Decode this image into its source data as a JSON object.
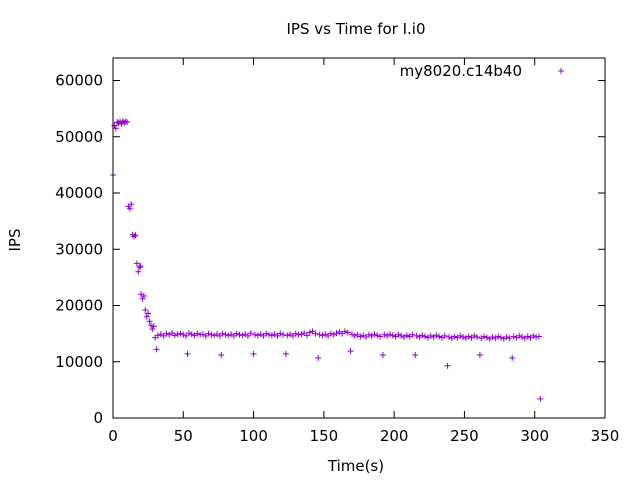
{
  "chart_data": {
    "type": "scatter",
    "title": "IPS vs Time for I.i0",
    "xlabel": "Time(s)",
    "ylabel": "IPS",
    "xlim": [
      0,
      350
    ],
    "ylim": [
      0,
      64000
    ],
    "xticks": [
      0,
      50,
      100,
      150,
      200,
      250,
      300,
      350
    ],
    "yticks": [
      0,
      10000,
      20000,
      30000,
      40000,
      50000,
      60000
    ],
    "grid": false,
    "legend_position": "top-right",
    "marker": "+",
    "series": [
      {
        "name": "my8020.c14b40",
        "color": "#9400d3",
        "points": [
          [
            0,
            43200
          ],
          [
            1,
            52000
          ],
          [
            2,
            51500
          ],
          [
            3,
            52600
          ],
          [
            4,
            52400
          ],
          [
            5,
            52700
          ],
          [
            6,
            52300
          ],
          [
            7,
            52800
          ],
          [
            8,
            52500
          ],
          [
            9,
            52700
          ],
          [
            10,
            52600
          ],
          [
            11,
            37600
          ],
          [
            12,
            37200
          ],
          [
            13,
            38000
          ],
          [
            14,
            32600
          ],
          [
            15,
            32300
          ],
          [
            16,
            32500
          ],
          [
            17,
            27500
          ],
          [
            18,
            26000
          ],
          [
            19,
            26800
          ],
          [
            19.5,
            27000
          ],
          [
            20,
            22000
          ],
          [
            21,
            21200
          ],
          [
            22,
            21700
          ],
          [
            23,
            19200
          ],
          [
            24,
            18000
          ],
          [
            25,
            18600
          ],
          [
            26,
            17200
          ],
          [
            27,
            16500
          ],
          [
            28,
            15800
          ],
          [
            29,
            16300
          ],
          [
            30,
            14300
          ],
          [
            31,
            12200
          ],
          [
            32,
            14700
          ],
          [
            34,
            14900
          ],
          [
            36,
            14600
          ],
          [
            38,
            15000
          ],
          [
            40,
            14800
          ],
          [
            42,
            15100
          ],
          [
            44,
            14700
          ],
          [
            46,
            14900
          ],
          [
            48,
            15000
          ],
          [
            50,
            14800
          ],
          [
            52,
            14600
          ],
          [
            53,
            11400
          ],
          [
            54,
            15100
          ],
          [
            56,
            14900
          ],
          [
            58,
            14700
          ],
          [
            60,
            15000
          ],
          [
            62,
            14800
          ],
          [
            64,
            14900
          ],
          [
            66,
            14600
          ],
          [
            68,
            15000
          ],
          [
            70,
            14800
          ],
          [
            72,
            14700
          ],
          [
            74,
            14900
          ],
          [
            76,
            14600
          ],
          [
            77,
            11200
          ],
          [
            78,
            15000
          ],
          [
            80,
            14800
          ],
          [
            82,
            14700
          ],
          [
            84,
            14900
          ],
          [
            86,
            14600
          ],
          [
            88,
            15000
          ],
          [
            90,
            14800
          ],
          [
            92,
            14700
          ],
          [
            94,
            14900
          ],
          [
            96,
            14600
          ],
          [
            98,
            15100
          ],
          [
            100,
            11400
          ],
          [
            101,
            14800
          ],
          [
            103,
            14700
          ],
          [
            105,
            14900
          ],
          [
            107,
            14600
          ],
          [
            109,
            15000
          ],
          [
            111,
            14800
          ],
          [
            113,
            14700
          ],
          [
            115,
            14900
          ],
          [
            117,
            14600
          ],
          [
            119,
            15000
          ],
          [
            121,
            14800
          ],
          [
            123,
            11400
          ],
          [
            124,
            14700
          ],
          [
            126,
            14900
          ],
          [
            128,
            14600
          ],
          [
            130,
            15000
          ],
          [
            132,
            14800
          ],
          [
            134,
            14900
          ],
          [
            136,
            15100
          ],
          [
            138,
            14700
          ],
          [
            140,
            15200
          ],
          [
            142,
            15400
          ],
          [
            144,
            15000
          ],
          [
            146,
            10700
          ],
          [
            147,
            14800
          ],
          [
            149,
            14700
          ],
          [
            151,
            14900
          ],
          [
            153,
            14600
          ],
          [
            155,
            15000
          ],
          [
            157,
            14800
          ],
          [
            159,
            15100
          ],
          [
            161,
            15300
          ],
          [
            163,
            15000
          ],
          [
            165,
            15400
          ],
          [
            167,
            15200
          ],
          [
            169,
            11900
          ],
          [
            170,
            14900
          ],
          [
            172,
            14600
          ],
          [
            174,
            14800
          ],
          [
            176,
            14500
          ],
          [
            178,
            14700
          ],
          [
            180,
            14400
          ],
          [
            182,
            14800
          ],
          [
            184,
            14600
          ],
          [
            186,
            14900
          ],
          [
            188,
            14700
          ],
          [
            190,
            14500
          ],
          [
            192,
            11200
          ],
          [
            193,
            14800
          ],
          [
            195,
            14600
          ],
          [
            197,
            14900
          ],
          [
            199,
            14700
          ],
          [
            201,
            14500
          ],
          [
            203,
            14800
          ],
          [
            205,
            14600
          ],
          [
            207,
            14400
          ],
          [
            209,
            14700
          ],
          [
            211,
            14500
          ],
          [
            213,
            14800
          ],
          [
            215,
            11200
          ],
          [
            216,
            14600
          ],
          [
            218,
            14400
          ],
          [
            220,
            14700
          ],
          [
            222,
            14500
          ],
          [
            224,
            14300
          ],
          [
            226,
            14600
          ],
          [
            228,
            14400
          ],
          [
            230,
            14700
          ],
          [
            232,
            14500
          ],
          [
            234,
            14300
          ],
          [
            236,
            14600
          ],
          [
            238,
            9300
          ],
          [
            239,
            14400
          ],
          [
            241,
            14200
          ],
          [
            243,
            14500
          ],
          [
            245,
            14300
          ],
          [
            247,
            14600
          ],
          [
            249,
            14400
          ],
          [
            251,
            14200
          ],
          [
            253,
            14500
          ],
          [
            255,
            14300
          ],
          [
            257,
            14600
          ],
          [
            259,
            14400
          ],
          [
            261,
            11200
          ],
          [
            262,
            14200
          ],
          [
            264,
            14500
          ],
          [
            266,
            14300
          ],
          [
            268,
            14100
          ],
          [
            270,
            14400
          ],
          [
            272,
            14200
          ],
          [
            274,
            14500
          ],
          [
            276,
            14300
          ],
          [
            278,
            14100
          ],
          [
            280,
            14400
          ],
          [
            282,
            14200
          ],
          [
            284,
            10700
          ],
          [
            285,
            14500
          ],
          [
            287,
            14300
          ],
          [
            289,
            14600
          ],
          [
            291,
            14400
          ],
          [
            293,
            14200
          ],
          [
            295,
            14500
          ],
          [
            297,
            14300
          ],
          [
            299,
            14600
          ],
          [
            301,
            14400
          ],
          [
            303,
            14500
          ],
          [
            304,
            3400
          ]
        ]
      }
    ]
  }
}
